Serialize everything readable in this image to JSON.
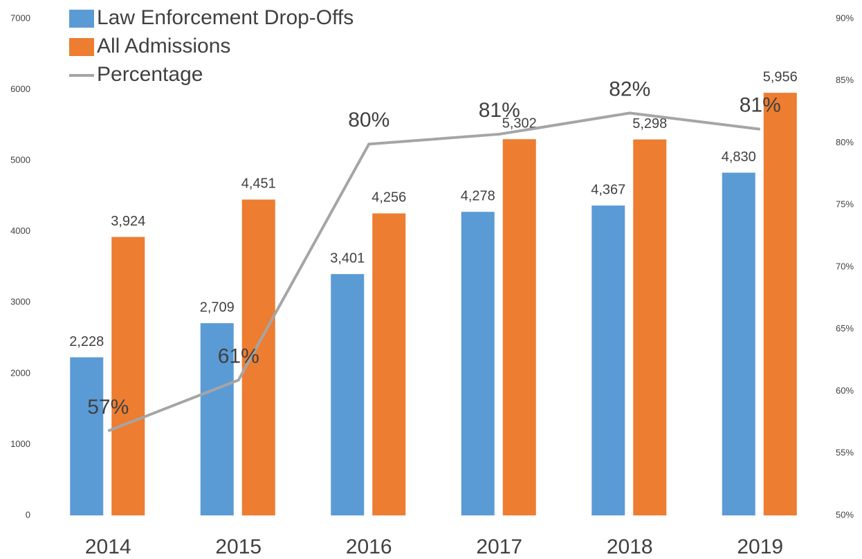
{
  "chart_data": {
    "type": "bar_line",
    "categories": [
      "2014",
      "2015",
      "2016",
      "2017",
      "2018",
      "2019"
    ],
    "series": [
      {
        "name": "Law Enforcement Drop-Offs",
        "color": "#5b9bd5",
        "values": [
          2228,
          2709,
          3401,
          4278,
          4367,
          4830
        ],
        "value_labels": [
          "2,228",
          "2,709",
          "3,401",
          "4,278",
          "4,367",
          "4,830"
        ]
      },
      {
        "name": "All Admissions",
        "color": "#ed7d31",
        "values": [
          3924,
          4451,
          4256,
          5302,
          5298,
          5956
        ],
        "value_labels": [
          "3,924",
          "4,451",
          "4,256",
          "5,302",
          "5,298",
          "5,956"
        ]
      },
      {
        "name": "Percentage",
        "type": "line",
        "axis": "y2",
        "color": "#a5a5a5",
        "values": [
          56.8,
          60.9,
          79.9,
          80.7,
          82.4,
          81.1
        ],
        "value_labels": [
          "57%",
          "61%",
          "80%",
          "81%",
          "82%",
          "81%"
        ]
      }
    ],
    "ylim": [
      0,
      7000
    ],
    "yticks": [
      0,
      1000,
      2000,
      3000,
      4000,
      5000,
      6000,
      7000
    ],
    "y2lim": [
      50,
      90
    ],
    "y2ticks": [
      {
        "value": 50,
        "label": "50%"
      },
      {
        "value": 55,
        "label": "55%"
      },
      {
        "value": 60,
        "label": "60%"
      },
      {
        "value": 65,
        "label": "65%"
      },
      {
        "value": 70,
        "label": "70%"
      },
      {
        "value": 75,
        "label": "75%"
      },
      {
        "value": 80,
        "label": "80%"
      },
      {
        "value": 85,
        "label": "85%"
      },
      {
        "value": 90,
        "label": "90%"
      }
    ],
    "legend": "top-left",
    "grid": false
  }
}
